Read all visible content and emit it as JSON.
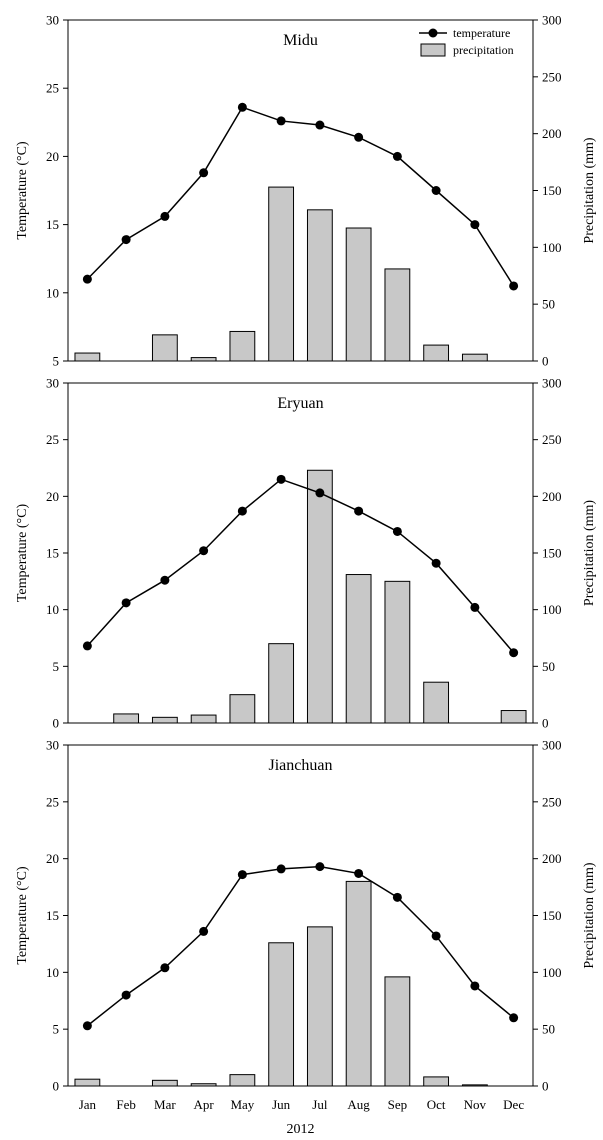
{
  "figure": {
    "xlabel": "2012",
    "legend": {
      "temperature": "temperature",
      "precipitation": "precipitation",
      "position": "top-right (first panel)"
    },
    "colors": {
      "bar_fill": "#c8c8c8",
      "bar_stroke": "#000000",
      "line": "#000000",
      "marker": "#000000"
    }
  },
  "chart_data": [
    {
      "type": "bar+line",
      "title": "Midu",
      "categories": [
        "Jan",
        "Feb",
        "Mar",
        "Apr",
        "May",
        "Jun",
        "Jul",
        "Aug",
        "Sep",
        "Oct",
        "Nov",
        "Dec"
      ],
      "temp_axis": {
        "label": "Temperature (°C)",
        "ylim": [
          5,
          30
        ],
        "ticks": [
          5,
          10,
          15,
          20,
          25,
          30
        ]
      },
      "precip_axis": {
        "label": "Precipitation (mm)",
        "ylim": [
          0,
          300
        ],
        "ticks": [
          0,
          50,
          100,
          150,
          200,
          250,
          300
        ]
      },
      "series": [
        {
          "name": "temperature",
          "type": "line",
          "axis": "temp",
          "values": [
            11.0,
            13.9,
            15.6,
            18.8,
            23.6,
            22.6,
            22.3,
            21.4,
            20.0,
            17.5,
            15.0,
            10.5
          ]
        },
        {
          "name": "precipitation",
          "type": "bar",
          "axis": "precip",
          "values": [
            7,
            0,
            23,
            3,
            26,
            153,
            133,
            117,
            81,
            14,
            6,
            0
          ]
        }
      ]
    },
    {
      "type": "bar+line",
      "title": "Eryuan",
      "categories": [
        "Jan",
        "Feb",
        "Mar",
        "Apr",
        "May",
        "Jun",
        "Jul",
        "Aug",
        "Sep",
        "Oct",
        "Nov",
        "Dec"
      ],
      "temp_axis": {
        "label": "Temperature (°C)",
        "ylim": [
          0,
          30
        ],
        "ticks": [
          0,
          5,
          10,
          15,
          20,
          25,
          30
        ]
      },
      "precip_axis": {
        "label": "Precipitation (mm)",
        "ylim": [
          0,
          300
        ],
        "ticks": [
          0,
          50,
          100,
          150,
          200,
          250,
          300
        ]
      },
      "series": [
        {
          "name": "temperature",
          "type": "line",
          "axis": "temp",
          "values": [
            6.8,
            10.6,
            12.6,
            15.2,
            18.7,
            21.5,
            20.3,
            18.7,
            16.9,
            14.1,
            10.2,
            6.2
          ]
        },
        {
          "name": "precipitation",
          "type": "bar",
          "axis": "precip",
          "values": [
            0,
            8,
            5,
            7,
            25,
            70,
            223,
            131,
            125,
            36,
            0,
            11
          ]
        }
      ]
    },
    {
      "type": "bar+line",
      "title": "Jianchuan",
      "categories": [
        "Jan",
        "Feb",
        "Mar",
        "Apr",
        "May",
        "Jun",
        "Jul",
        "Aug",
        "Sep",
        "Oct",
        "Nov",
        "Dec"
      ],
      "temp_axis": {
        "label": "Temperature (°C)",
        "ylim": [
          0,
          30
        ],
        "ticks": [
          0,
          5,
          10,
          15,
          20,
          25,
          30
        ]
      },
      "precip_axis": {
        "label": "Precipitation (mm)",
        "ylim": [
          0,
          300
        ],
        "ticks": [
          0,
          50,
          100,
          150,
          200,
          250,
          300
        ]
      },
      "series": [
        {
          "name": "temperature",
          "type": "line",
          "axis": "temp",
          "values": [
            5.3,
            8.0,
            10.4,
            13.6,
            18.6,
            19.1,
            19.3,
            18.7,
            16.6,
            13.2,
            8.8,
            6.0
          ]
        },
        {
          "name": "precipitation",
          "type": "bar",
          "axis": "precip",
          "values": [
            6,
            0,
            5,
            2,
            10,
            126,
            140,
            180,
            96,
            8,
            1,
            0
          ]
        }
      ]
    }
  ]
}
